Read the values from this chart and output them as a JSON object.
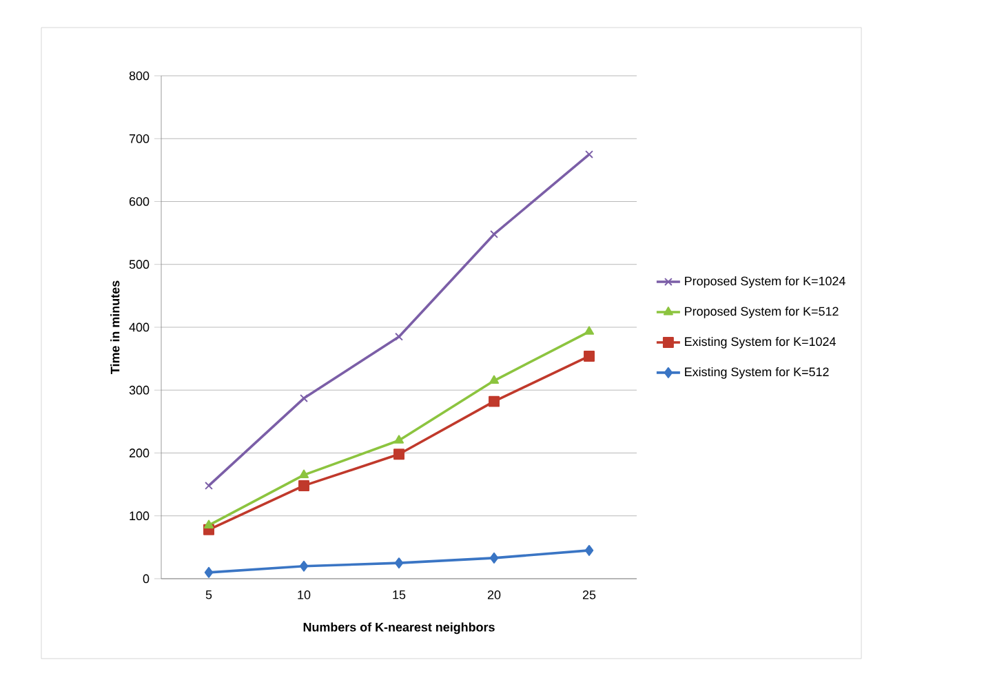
{
  "chart_data": {
    "type": "line",
    "xlabel": "Numbers of K-nearest neighbors",
    "ylabel": "Time in minutes",
    "categories": [
      "5",
      "10",
      "15",
      "20",
      "25"
    ],
    "series": [
      {
        "name": "Proposed System for K=1024",
        "color": "#7b5ea7",
        "marker": "cross",
        "values": [
          148,
          287,
          385,
          548,
          675
        ]
      },
      {
        "name": "Proposed System for K=512",
        "color": "#8cc43f",
        "marker": "triangle",
        "values": [
          85,
          165,
          220,
          315,
          393
        ]
      },
      {
        "name": "Existing System  for K=1024",
        "color": "#c0392b",
        "marker": "square",
        "values": [
          78,
          148,
          198,
          282,
          354
        ]
      },
      {
        "name": "Existing System  for K=512",
        "color": "#3a75c4",
        "marker": "diamond",
        "values": [
          10,
          20,
          25,
          33,
          45
        ]
      }
    ],
    "ylim": [
      0,
      800
    ],
    "yticks": [
      0,
      100,
      200,
      300,
      400,
      500,
      600,
      700,
      800
    ],
    "grid": "y",
    "legend": "right"
  }
}
